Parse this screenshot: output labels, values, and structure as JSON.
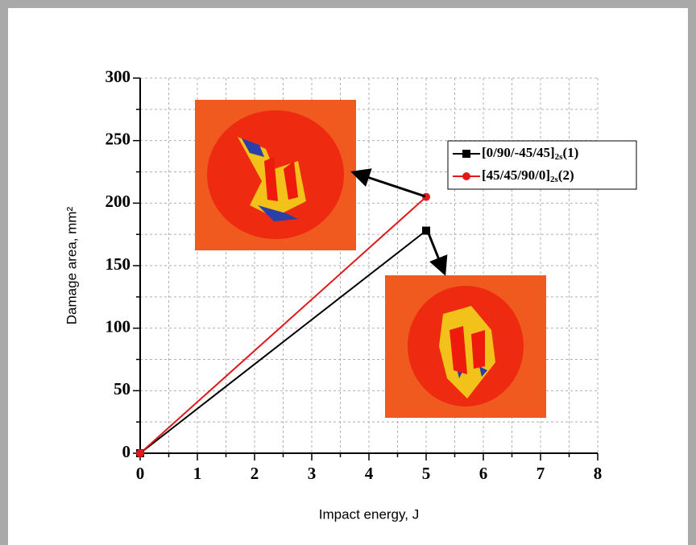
{
  "chart_data": {
    "type": "line",
    "x_label": "Impact energy, J",
    "y_label": "Damage area, mm²",
    "x": [
      0,
      5
    ],
    "series": [
      {
        "name": "[0/90/-45/45]2s(1)",
        "color": "#000000",
        "marker": "square",
        "values": [
          0,
          178
        ]
      },
      {
        "name": "[45/45/90/0]2s(2)",
        "color": "#e0191c",
        "marker": "circle",
        "values": [
          0,
          205
        ]
      }
    ],
    "xlim": [
      0,
      8
    ],
    "xticks": [
      0,
      1,
      2,
      3,
      4,
      5,
      6,
      7,
      8
    ],
    "ylim": [
      0,
      300
    ],
    "yticks": [
      0,
      50,
      100,
      150,
      200,
      250,
      300
    ],
    "grid": true,
    "legend": "upper right"
  }
}
